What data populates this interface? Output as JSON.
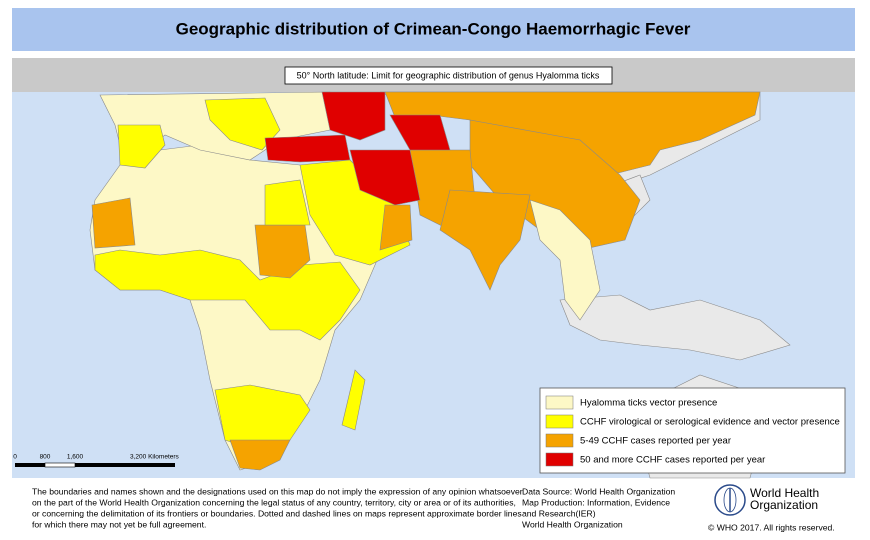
{
  "header": {
    "title": "Geographic distribution of Crimean-Congo Haemorrhagic Fever"
  },
  "map": {
    "latitude_label": "50° North latitude: Limit for geographic distribution of genus Hyalomma ticks",
    "legend": [
      {
        "label": "Hyalomma ticks vector presence",
        "color": "#fdf8c6"
      },
      {
        "label": "CCHF virological or serological evidence and vector presence",
        "color": "#ffff00"
      },
      {
        "label": "5-49 CCHF cases reported per year",
        "color": "#f5a300"
      },
      {
        "label": "50 and more CCHF cases reported per year",
        "color": "#e00000"
      }
    ],
    "scale_bar": [
      "0",
      "800",
      "1,600",
      "3,200 Kilometers"
    ]
  },
  "footer": {
    "disclaimer": [
      "The boundaries and names shown and the designations used on this map do not imply the expression of any opinion whatsoever",
      "on the part of the World Health Organization concerning the legal status of any country, territory, city or area or of its authorities,",
      "or concerning the delimitation of its frontiers or boundaries. Dotted and dashed lines on maps represent approximate border lines",
      "for which there may not yet be full agreement."
    ],
    "data_source": [
      "Data Source: World Health Organization",
      "Map Production: Information, Evidence",
      "and Research(IER)",
      "World Health Organization"
    ],
    "organization": [
      "World Health",
      "Organization"
    ],
    "copyright": "© WHO 2017. All rights reserved."
  }
}
